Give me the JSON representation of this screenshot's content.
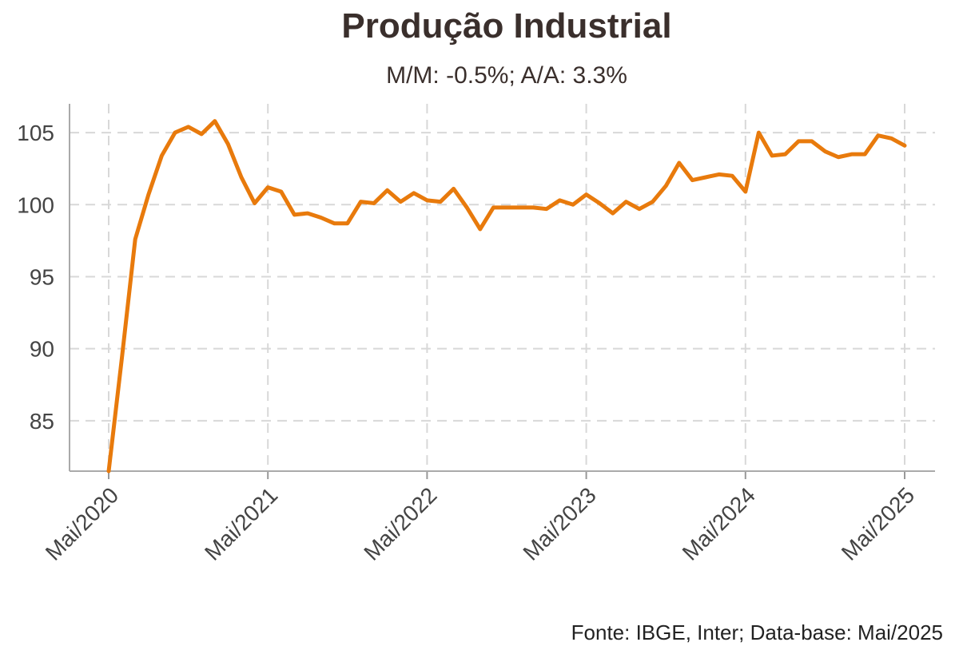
{
  "chart_data": {
    "type": "line",
    "title": "Produção Industrial",
    "subtitle": "M/M: -0.5%; A/A: 3.3%",
    "caption": "Fonte: IBGE, Inter; Data-base: Mai/2025",
    "xlabel": "",
    "ylabel": "",
    "ylim": [
      81.5,
      107
    ],
    "yticks": [
      85,
      90,
      95,
      100,
      105
    ],
    "xticks": [
      {
        "label": "Mai/2020",
        "index": 0
      },
      {
        "label": "Mai/2021",
        "index": 12
      },
      {
        "label": "Mai/2022",
        "index": 24
      },
      {
        "label": "Mai/2023",
        "index": 36
      },
      {
        "label": "Mai/2024",
        "index": 48
      },
      {
        "label": "Mai/2025",
        "index": 60
      }
    ],
    "grid": true,
    "series": [
      {
        "name": "",
        "color": "#E87A0C",
        "values": [
          81.5,
          89.4,
          97.6,
          100.7,
          103.4,
          105.0,
          105.4,
          104.9,
          105.8,
          104.2,
          101.9,
          100.1,
          101.2,
          100.9,
          99.3,
          99.4,
          99.1,
          98.7,
          98.7,
          100.2,
          100.1,
          101.0,
          100.2,
          100.8,
          100.3,
          100.2,
          101.1,
          99.8,
          98.3,
          99.8,
          99.8,
          99.8,
          99.8,
          99.7,
          100.3,
          100.0,
          100.7,
          100.1,
          99.4,
          100.2,
          99.7,
          100.2,
          101.3,
          102.9,
          101.7,
          101.9,
          102.1,
          102.0,
          100.9,
          105.0,
          103.4,
          103.5,
          104.4,
          104.4,
          103.7,
          103.3,
          103.5,
          103.5,
          104.8,
          104.6,
          104.1
        ]
      }
    ]
  }
}
